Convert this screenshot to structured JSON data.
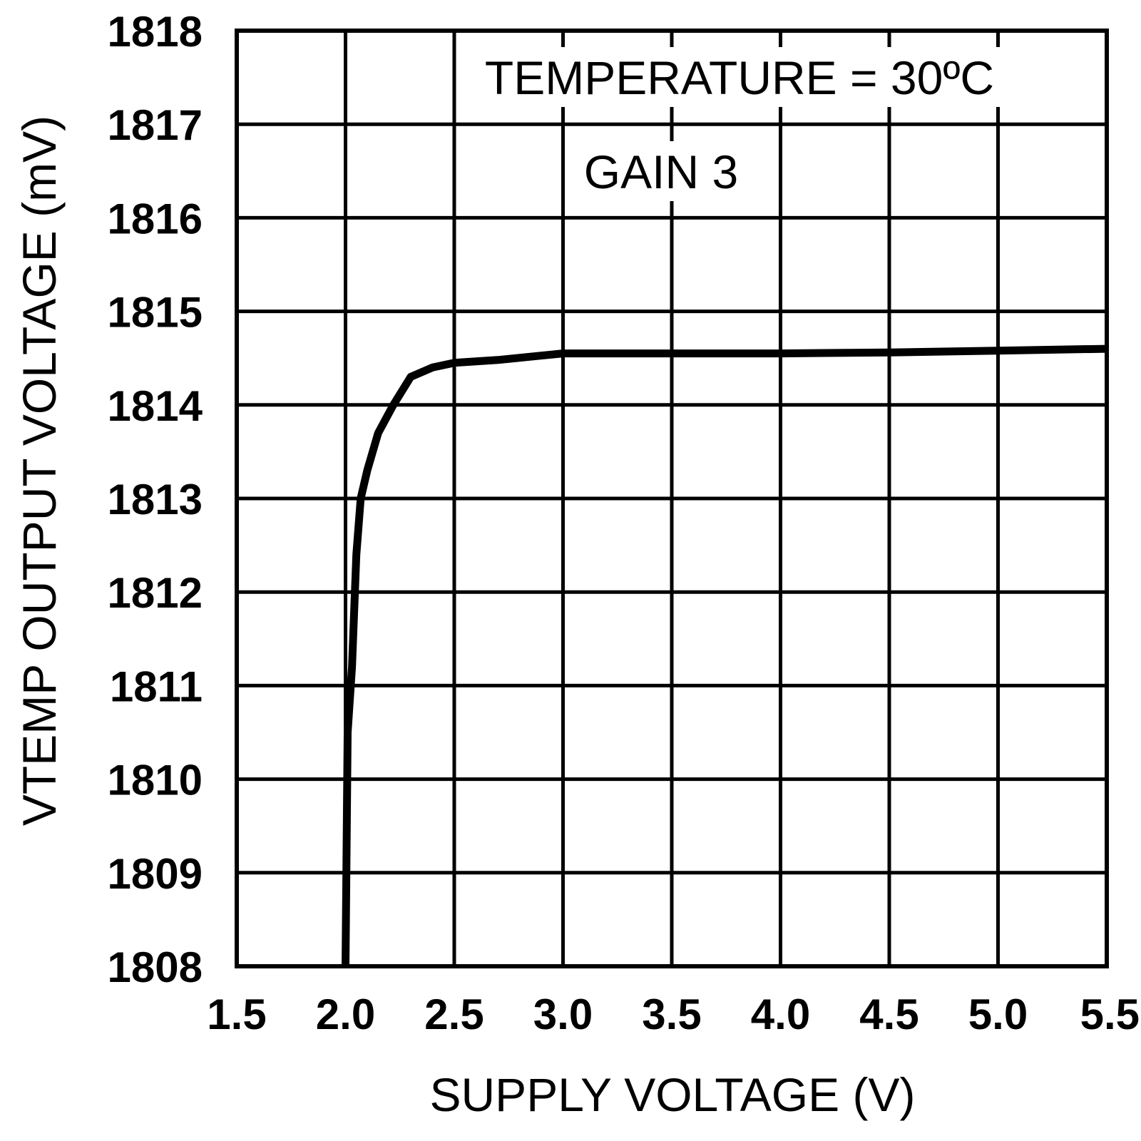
{
  "chart_data": {
    "type": "line",
    "xlabel": "SUPPLY VOLTAGE (V)",
    "ylabel": "VTEMP OUTPUT VOLTAGE (mV)",
    "xlim": [
      1.5,
      5.5
    ],
    "ylim": [
      1808,
      1818
    ],
    "x_ticks": [
      "1.5",
      "2.0",
      "2.5",
      "3.0",
      "3.5",
      "4.0",
      "4.5",
      "5.0",
      "5.5"
    ],
    "y_ticks": [
      "1808",
      "1809",
      "1810",
      "1811",
      "1812",
      "1813",
      "1814",
      "1815",
      "1816",
      "1817",
      "1818"
    ],
    "grid": true,
    "annotations": [
      "TEMPERATURE = 30ºC",
      "GAIN 3"
    ],
    "series": [
      {
        "x": [
          2.0,
          2.01,
          2.03,
          2.05,
          2.07,
          2.1,
          2.15,
          2.22,
          2.3,
          2.4,
          2.5,
          2.7,
          3.0,
          3.5,
          4.0,
          4.5,
          5.0,
          5.5
        ],
        "y": [
          1808.0,
          1810.5,
          1811.2,
          1812.4,
          1813.0,
          1813.3,
          1813.7,
          1814.0,
          1814.3,
          1814.4,
          1814.45,
          1814.48,
          1814.55,
          1814.55,
          1814.55,
          1814.56,
          1814.58,
          1814.6
        ]
      }
    ]
  }
}
